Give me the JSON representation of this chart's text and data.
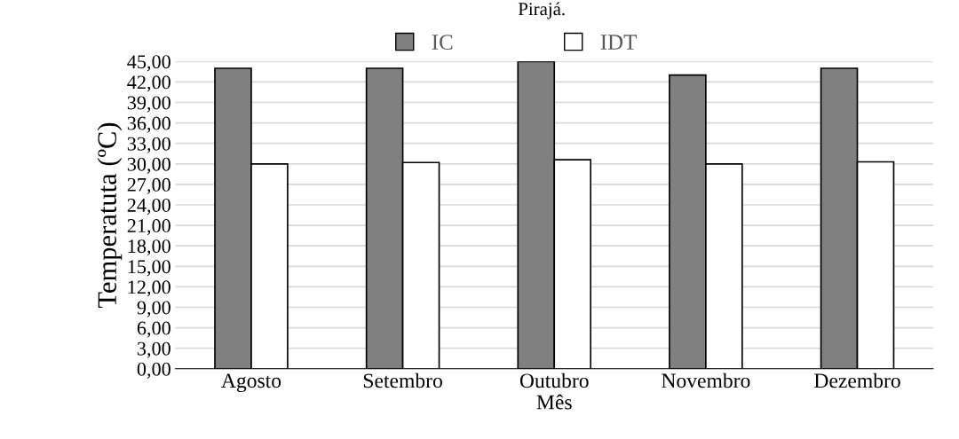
{
  "chart_data": {
    "type": "bar",
    "title": "Pirajá.",
    "xlabel": "Mês",
    "ylabel": "Temperatuta (ºC)",
    "categories": [
      "Agosto",
      "Setembro",
      "Outubro",
      "Novembro",
      "Dezembro"
    ],
    "series": [
      {
        "name": "IC",
        "color": "#808080",
        "values": [
          44,
          44,
          45,
          43,
          44
        ]
      },
      {
        "name": "IDT",
        "color": "#ffffff",
        "values": [
          30.0,
          30.2,
          30.6,
          30.0,
          30.3
        ]
      }
    ],
    "ylim": [
      0,
      45
    ],
    "yticks": [
      {
        "value": 0,
        "label": "0,00"
      },
      {
        "value": 3,
        "label": "3,00"
      },
      {
        "value": 6,
        "label": "6,00"
      },
      {
        "value": 9,
        "label": "9,00"
      },
      {
        "value": 12,
        "label": "12,00"
      },
      {
        "value": 15,
        "label": "15,00"
      },
      {
        "value": 18,
        "label": "18,00"
      },
      {
        "value": 21,
        "label": "21,00"
      },
      {
        "value": 24,
        "label": "24,00"
      },
      {
        "value": 27,
        "label": "27,00"
      },
      {
        "value": 30,
        "label": "30,00"
      },
      {
        "value": 33,
        "label": "33,00"
      },
      {
        "value": 36,
        "label": "36,00"
      },
      {
        "value": 39,
        "label": "39,00"
      },
      {
        "value": 42,
        "label": "42,00"
      },
      {
        "value": 45,
        "label": "45,00"
      }
    ],
    "grid": "y",
    "legend": "top"
  }
}
